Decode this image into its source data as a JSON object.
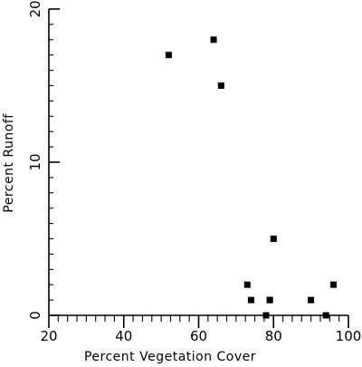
{
  "chart_data": {
    "type": "scatter",
    "title": "",
    "xlabel": "Percent Vegetation Cover",
    "ylabel": "Percent Runoff",
    "xlim": [
      20,
      100
    ],
    "ylim": [
      0,
      20
    ],
    "x_ticks": [
      20,
      40,
      60,
      80,
      100
    ],
    "y_ticks": [
      0,
      10,
      20
    ],
    "grid": false,
    "marker": "square",
    "series": [
      {
        "x": [
          52,
          64,
          66,
          73,
          74,
          78,
          79,
          79,
          80,
          90,
          94,
          96
        ],
        "y": [
          17,
          18,
          15,
          2,
          1,
          0,
          1,
          1,
          5,
          1,
          0,
          2
        ]
      }
    ]
  }
}
